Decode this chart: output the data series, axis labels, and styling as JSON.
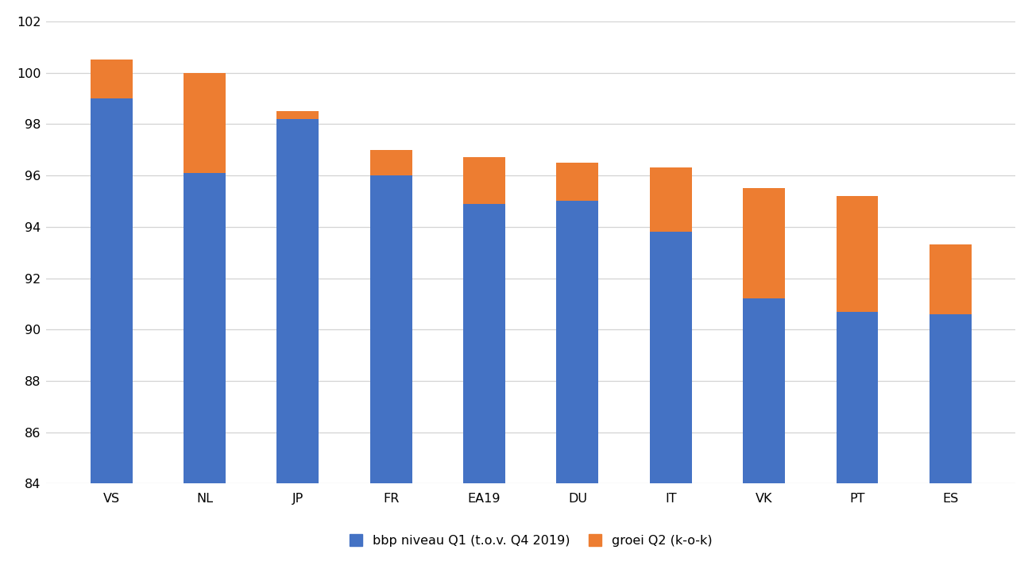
{
  "categories": [
    "VS",
    "NL",
    "JP",
    "FR",
    "EA19",
    "DU",
    "IT",
    "VK",
    "PT",
    "ES"
  ],
  "blue_values": [
    99.0,
    96.1,
    98.2,
    96.0,
    94.9,
    95.0,
    93.8,
    91.2,
    90.7,
    90.6
  ],
  "orange_values": [
    1.5,
    3.9,
    0.3,
    1.0,
    1.8,
    1.5,
    2.5,
    4.3,
    4.5,
    2.7
  ],
  "blue_color": "#4472C4",
  "orange_color": "#ED7D31",
  "ylim": [
    84,
    102
  ],
  "yticks": [
    84,
    86,
    88,
    90,
    92,
    94,
    96,
    98,
    100,
    102
  ],
  "legend_blue": "bbp niveau Q1 (t.o.v. Q4 2019)",
  "legend_orange": "groei Q2 (k-o-k)",
  "background_color": "#ffffff",
  "grid_color": "#d3d3d3",
  "bar_width": 0.45,
  "legend_fontsize": 11.5,
  "tick_fontsize": 11.5
}
